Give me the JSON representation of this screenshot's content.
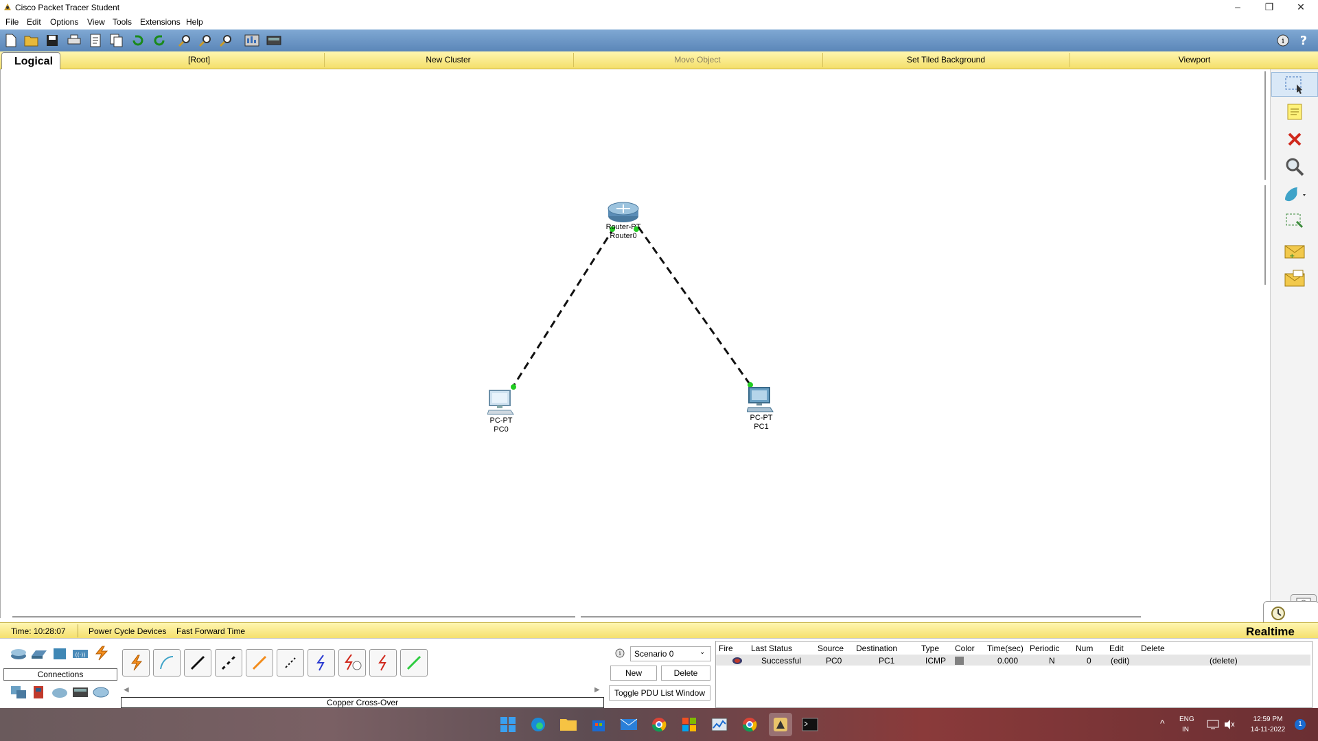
{
  "window": {
    "title": "Cisco Packet Tracer Student",
    "minimize": "–",
    "maximize": "❐",
    "close": "✕"
  },
  "menu": [
    "File",
    "Edit",
    "Options",
    "View",
    "Tools",
    "Extensions",
    "Help"
  ],
  "workspace_bar": {
    "tab": "Logical",
    "root": "[Root]",
    "new_cluster": "New Cluster",
    "move_object": "Move Object",
    "tiled_bg": "Set Tiled Background",
    "viewport": "Viewport"
  },
  "devices": [
    {
      "model": "Router-PT",
      "name": "Router0"
    },
    {
      "model": "PC-PT",
      "name": "PC0"
    },
    {
      "model": "PC-PT",
      "name": "PC1"
    }
  ],
  "statusbar": {
    "time": "Time: 10:28:07",
    "power_cycle": "Power Cycle Devices",
    "fast_forward": "Fast Forward Time",
    "mode": "Realtime"
  },
  "device_panel": {
    "category": "Connections",
    "selected_cable": "Copper Cross-Over"
  },
  "scenario": {
    "selected": "Scenario 0",
    "new": "New",
    "delete": "Delete",
    "toggle": "Toggle PDU List Window"
  },
  "pdu_table": {
    "headers": [
      "Fire",
      "Last Status",
      "Source",
      "Destination",
      "Type",
      "Color",
      "Time(sec)",
      "Periodic",
      "Num",
      "Edit",
      "Delete"
    ],
    "rows": [
      {
        "last_status": "Successful",
        "source": "PC0",
        "destination": "PC1",
        "type": "ICMP",
        "color": "#808080",
        "time": "0.000",
        "periodic": "N",
        "num": "0",
        "edit": "(edit)",
        "delete": "(delete)"
      }
    ]
  },
  "tray": {
    "lang1": "ENG",
    "lang2": "IN",
    "clock_time": "12:59 PM",
    "clock_date": "14-11-2022",
    "notification_count": "1"
  },
  "colors": {
    "toolbar_blue": "#6b94c4",
    "yellow_bar": "#f4df6a",
    "link_up": "#22cc22"
  }
}
